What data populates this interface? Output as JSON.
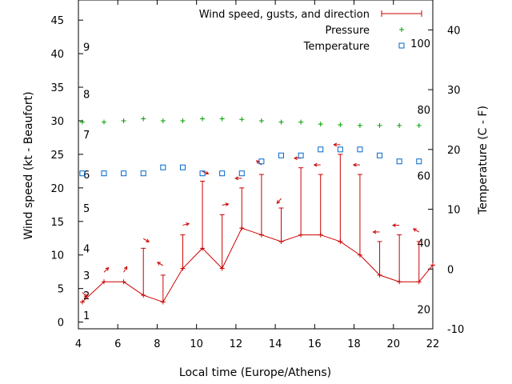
{
  "chart_data": {
    "type": "line",
    "xlabel": "Local time (Europe/Athens)",
    "ylabel": "Wind speed (kt - Beaufort)",
    "y2label": "Temperature (C - F)",
    "xlim": [
      4,
      22
    ],
    "ylim": [
      -1,
      48
    ],
    "y2lim": [
      -10,
      45
    ],
    "x_ticks": [
      4,
      6,
      8,
      10,
      12,
      14,
      16,
      18,
      20,
      22
    ],
    "y_ticks": [
      0,
      5,
      10,
      15,
      20,
      25,
      30,
      35,
      40,
      45
    ],
    "y2_ticks": [
      -10,
      0,
      10,
      20,
      30,
      40
    ],
    "beaufort_labels": [
      {
        "label": "1",
        "y": 1
      },
      {
        "label": "2",
        "y": 4
      },
      {
        "label": "3",
        "y": 7
      },
      {
        "label": "4",
        "y": 11
      },
      {
        "label": "5",
        "y": 17
      },
      {
        "label": "6",
        "y": 22
      },
      {
        "label": "7",
        "y": 28
      },
      {
        "label": "8",
        "y": 34
      },
      {
        "label": "9",
        "y": 41
      }
    ],
    "fahrenheit_labels": [
      {
        "label": "20",
        "y2": -6.7
      },
      {
        "label": "40",
        "y2": 4.4
      },
      {
        "label": "60",
        "y2": 15.6
      },
      {
        "label": "80",
        "y2": 26.7
      },
      {
        "label": "100",
        "y2": 37.8
      }
    ],
    "legend_position": "top-right",
    "series": [
      {
        "name": "Wind speed, gusts, and direction",
        "color": "#cc0000",
        "x": [
          4.2,
          5.3,
          6.3,
          7.3,
          8.3,
          9.3,
          10.3,
          11.3,
          12.3,
          13.3,
          14.3,
          15.3,
          16.3,
          17.3,
          18.3,
          19.3,
          20.3,
          21.3,
          22
        ],
        "values": [
          3,
          6,
          6,
          4,
          3,
          8,
          11,
          8,
          14,
          13,
          12,
          13,
          13,
          12,
          10,
          7,
          6,
          6,
          8.5
        ],
        "gusts": [
          null,
          null,
          null,
          11,
          7,
          13,
          21,
          16,
          20,
          22,
          17,
          23,
          22,
          25,
          22,
          12,
          13,
          12,
          null
        ],
        "direction_deg": [
          135,
          45,
          30,
          120,
          300,
          75,
          110,
          80,
          270,
          310,
          220,
          270,
          270,
          270,
          270,
          270,
          270,
          300,
          null
        ]
      },
      {
        "name": "Pressure",
        "color": "#00a000",
        "x": [
          4.2,
          5.3,
          6.3,
          7.3,
          8.3,
          9.3,
          10.3,
          11.3,
          12.3,
          13.3,
          14.3,
          15.3,
          16.3,
          17.3,
          18.3,
          19.3,
          20.3,
          21.3
        ],
        "values": [
          29.8,
          29.8,
          30.0,
          30.3,
          30.0,
          30.0,
          30.3,
          30.3,
          30.2,
          30.0,
          29.8,
          29.8,
          29.5,
          29.4,
          29.3,
          29.3,
          29.3,
          29.3
        ]
      },
      {
        "name": "Temperature",
        "color": "#0066cc",
        "x": [
          4.2,
          5.3,
          6.3,
          7.3,
          8.3,
          9.3,
          10.3,
          11.3,
          12.3,
          13.3,
          14.3,
          15.3,
          16.3,
          17.3,
          18.3,
          19.3,
          20.3,
          21.3
        ],
        "values": [
          16,
          16,
          16,
          16,
          17,
          17,
          16,
          16,
          16,
          18,
          19,
          19,
          20,
          20,
          20,
          19,
          18,
          18
        ]
      }
    ]
  }
}
